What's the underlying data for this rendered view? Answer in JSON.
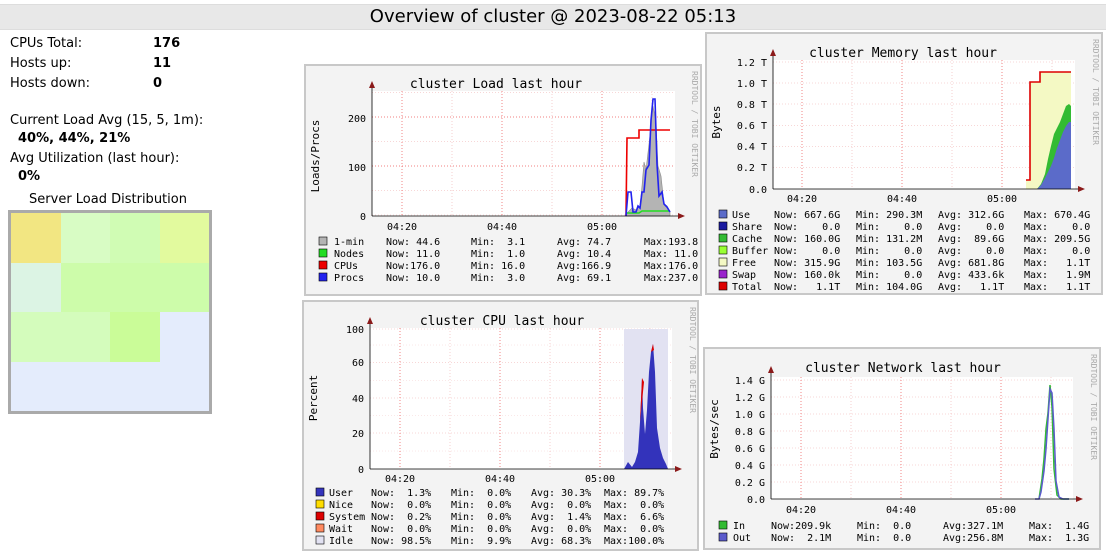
{
  "header": {
    "title": "Overview of cluster @ 2023-08-22 05:13"
  },
  "stats": {
    "cpus_label": "CPUs Total:",
    "cpus_value": "176",
    "hosts_up_label": "Hosts up:",
    "hosts_up_value": "11",
    "hosts_down_label": "Hosts down:",
    "hosts_down_value": "0",
    "load_label": "Current Load Avg (15, 5, 1m):",
    "load_value": "40%, 44%, 21%",
    "util_label": "Avg Utilization (last hour):",
    "util_value": "0%"
  },
  "distribution": {
    "title": "Server Load Distribution",
    "cells": [
      "#f2e682",
      "#d8fcc4",
      "#d0fcb4",
      "#e2fa9e",
      "#dcf4e4",
      "#cdfcaa",
      "#cdfcaa",
      "#cdfcaa",
      "#d4fcbc",
      "#d4fcbc",
      "#cafc98",
      "#e4ecfc",
      "#e4ecfc",
      "#e4ecfc",
      "#e4ecfc",
      "#e4ecfc"
    ]
  },
  "watermark": "RRDTOOL / TOBI OETIKER",
  "charts": {
    "load": {
      "title": "cluster Load last hour",
      "ylabel": "Loads/Procs",
      "yticks": [
        "0",
        "100",
        "200"
      ],
      "xticks": [
        "04:20",
        "04:40",
        "05:00"
      ],
      "legend": [
        {
          "color": "#b4b4b4",
          "name": "1-min",
          "now": "Now: 44.6",
          "min": "Min:  3.1",
          "avg": "Avg: 74.7",
          "max": "Max:193.8"
        },
        {
          "color": "#22dd22",
          "name": "Nodes",
          "now": "Now: 11.0",
          "min": "Min:  1.0",
          "avg": "Avg: 10.4",
          "max": "Max: 11.0"
        },
        {
          "color": "#ee0000",
          "name": "CPUs",
          "now": "Now:176.0",
          "min": "Min: 16.0",
          "avg": "Avg:166.9",
          "max": "Max:176.0"
        },
        {
          "color": "#2222ee",
          "name": "Procs",
          "now": "Now: 10.0",
          "min": "Min:  3.0",
          "avg": "Avg: 69.1",
          "max": "Max:237.0"
        }
      ]
    },
    "memory": {
      "title": "cluster Memory last hour",
      "ylabel": "Bytes",
      "yticks": [
        "0.0",
        "0.2 T",
        "0.4 T",
        "0.6 T",
        "0.8 T",
        "1.0 T",
        "1.2 T"
      ],
      "xticks": [
        "04:20",
        "04:40",
        "05:00"
      ],
      "legend": [
        {
          "color": "#5b6bc9",
          "name": "Use",
          "now": "Now: 667.6G",
          "min": "Min: 290.3M",
          "avg": "Avg: 312.6G",
          "max": "Max: 670.4G"
        },
        {
          "color": "#1a1aa0",
          "name": "Share",
          "now": "Now:    0.0",
          "min": "Min:    0.0",
          "avg": "Avg:    0.0",
          "max": "Max:    0.0"
        },
        {
          "color": "#33bb33",
          "name": "Cache",
          "now": "Now: 160.0G",
          "min": "Min: 131.2M",
          "avg": "Avg:  89.6G",
          "max": "Max: 209.5G"
        },
        {
          "color": "#99ff33",
          "name": "Buffer",
          "now": "Now:    0.0",
          "min": "Min:    0.0",
          "avg": "Avg:    0.0",
          "max": "Max:    0.0"
        },
        {
          "color": "#f4f9c4",
          "name": "Free",
          "now": "Now: 315.9G",
          "min": "Min: 103.5G",
          "avg": "Avg: 681.8G",
          "max": "Max:   1.1T"
        },
        {
          "color": "#9922cc",
          "name": "Swap",
          "now": "Now: 160.0k",
          "min": "Min:    0.0",
          "avg": "Avg: 433.6k",
          "max": "Max:   1.9M"
        },
        {
          "color": "#dd0000",
          "name": "Total",
          "now": "Now:   1.1T",
          "min": "Min: 104.0G",
          "avg": "Avg:   1.1T",
          "max": "Max:   1.1T"
        }
      ]
    },
    "cpu": {
      "title": "cluster CPU last hour",
      "ylabel": "Percent",
      "yticks": [
        "0",
        "20",
        "40",
        "60",
        "80",
        "100"
      ],
      "xticks": [
        "04:20",
        "04:40",
        "05:00"
      ],
      "legend": [
        {
          "color": "#3333bb",
          "name": "User",
          "now": "Now:  1.3%",
          "min": "Min:  0.0%",
          "avg": "Avg: 30.3%",
          "max": "Max: 89.7%"
        },
        {
          "color": "#ffdd00",
          "name": "Nice",
          "now": "Now:  0.0%",
          "min": "Min:  0.0%",
          "avg": "Avg:  0.0%",
          "max": "Max:  0.0%"
        },
        {
          "color": "#dd0000",
          "name": "System",
          "now": "Now:  0.2%",
          "min": "Min:  0.0%",
          "avg": "Avg:  1.4%",
          "max": "Max:  6.6%"
        },
        {
          "color": "#ff8a60",
          "name": "Wait",
          "now": "Now:  0.0%",
          "min": "Min:  0.0%",
          "avg": "Avg:  0.0%",
          "max": "Max:  0.0%"
        },
        {
          "color": "#e2e2f2",
          "name": "Idle",
          "now": "Now: 98.5%",
          "min": "Min:  9.9%",
          "avg": "Avg: 68.3%",
          "max": "Max:100.0%"
        }
      ]
    },
    "network": {
      "title": "cluster Network last hour",
      "ylabel": "Bytes/sec",
      "yticks": [
        "0.0",
        "0.2 G",
        "0.4 G",
        "0.6 G",
        "0.8 G",
        "1.0 G",
        "1.2 G",
        "1.4 G"
      ],
      "xticks": [
        "04:20",
        "04:40",
        "05:00"
      ],
      "legend": [
        {
          "color": "#33bb33",
          "name": "In",
          "now": "Now:209.9k",
          "min": "Min:  0.0",
          "avg": "Avg:327.1M",
          "max": "Max:  1.4G"
        },
        {
          "color": "#5b5bcc",
          "name": "Out",
          "now": "Now:  2.1M",
          "min": "Min:  0.0",
          "avg": "Avg:256.8M",
          "max": "Max:  1.3G"
        }
      ]
    }
  }
}
